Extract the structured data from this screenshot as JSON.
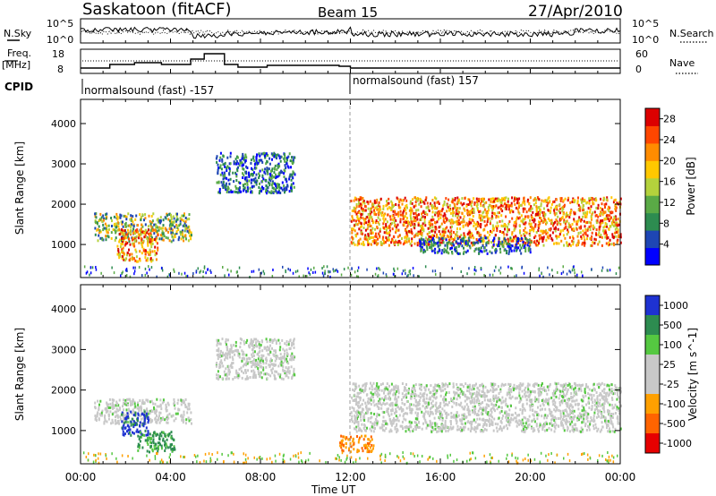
{
  "header": {
    "station": "Saskatoon (fitACF)",
    "beam": "Beam 15",
    "date": "27/Apr/2010"
  },
  "noise_panel": {
    "left_label": "N.Sky",
    "right_label": "N.Search",
    "left_ticks": [
      "10^5",
      "10^0"
    ],
    "right_ticks": [
      "10^5",
      "10^0"
    ]
  },
  "freq_panel": {
    "left_label_1": "Freq.",
    "left_label_2": "[MHz]",
    "right_label": "Nave",
    "left_ticks": [
      "18",
      "8"
    ],
    "right_ticks": [
      "60",
      "0"
    ]
  },
  "cpid": {
    "label": "CPID",
    "segment_1": "normalsound (fast) -157",
    "segment_2": "normalsound (fast) 157"
  },
  "colors": {
    "power_scale": [
      "#0000ff",
      "#1e46b4",
      "#2d8c50",
      "#5aaa46",
      "#b4d23c",
      "#ffc800",
      "#ff8c00",
      "#ff4600",
      "#dc0000"
    ],
    "velocity_scale": [
      "#1e32d2",
      "#2d8c50",
      "#55c841",
      "#c8c8c8",
      "#c8c8c8",
      "#ffa000",
      "#ff6400",
      "#e60000"
    ],
    "vertical_marker": "#888888"
  },
  "chart_data": [
    {
      "type": "heatmap",
      "title": "Power",
      "ylabel": "Slant Range [km]",
      "xlabel": "Time UT",
      "ylim": [
        180,
        4600
      ],
      "xlim": [
        0,
        24
      ],
      "x_ticks": [
        "00:00",
        "04:00",
        "08:00",
        "12:00",
        "16:00",
        "20:00",
        "00:00"
      ],
      "y_ticks": [
        1000,
        2000,
        3000,
        4000
      ],
      "colorbar_label": "Power [dB]",
      "colorbar_ticks": [
        "4",
        "8",
        "12",
        "16",
        "20",
        "24",
        "28"
      ],
      "colorbar_range": [
        0,
        30
      ],
      "echo_regions": [
        {
          "t_start": 0.6,
          "t_end": 4.9,
          "r_min": 1100,
          "r_max": 1800,
          "level": "moderate"
        },
        {
          "t_start": 1.6,
          "t_end": 3.4,
          "r_min": 600,
          "r_max": 1400,
          "level": "strong"
        },
        {
          "t_start": 6.0,
          "t_end": 9.5,
          "r_min": 2300,
          "r_max": 3300,
          "level": "weak"
        },
        {
          "t_start": 12.0,
          "t_end": 24.0,
          "r_min": 1000,
          "r_max": 2200,
          "level": "strong"
        },
        {
          "t_start": 15.0,
          "t_end": 20.0,
          "r_min": 800,
          "r_max": 1200,
          "level": "weak"
        }
      ]
    },
    {
      "type": "heatmap",
      "title": "Velocity",
      "ylabel": "Slant Range [km]",
      "xlabel": "Time UT",
      "ylim": [
        180,
        4600
      ],
      "xlim": [
        0,
        24
      ],
      "x_ticks": [
        "00:00",
        "04:00",
        "08:00",
        "12:00",
        "16:00",
        "20:00",
        "00:00"
      ],
      "y_ticks": [
        1000,
        2000,
        3000,
        4000
      ],
      "colorbar_label": "Velocity [m s^-1]",
      "colorbar_ticks": [
        "1000",
        "500",
        "100",
        "25",
        "-25",
        "-100",
        "-500",
        "-1000"
      ],
      "echo_regions": [
        {
          "t_start": 0.6,
          "t_end": 4.9,
          "r_min": 1200,
          "r_max": 1800,
          "level": "near-zero"
        },
        {
          "t_start": 1.8,
          "t_end": 3.0,
          "r_min": 900,
          "r_max": 1500,
          "level": "positive-high"
        },
        {
          "t_start": 2.5,
          "t_end": 4.2,
          "r_min": 500,
          "r_max": 1000,
          "level": "positive-moderate"
        },
        {
          "t_start": 6.0,
          "t_end": 9.5,
          "r_min": 2300,
          "r_max": 3300,
          "level": "near-zero"
        },
        {
          "t_start": 12.0,
          "t_end": 24.0,
          "r_min": 1000,
          "r_max": 2200,
          "level": "near-zero"
        },
        {
          "t_start": 11.5,
          "t_end": 13.0,
          "r_min": 500,
          "r_max": 900,
          "level": "negative-moderate"
        }
      ]
    }
  ]
}
